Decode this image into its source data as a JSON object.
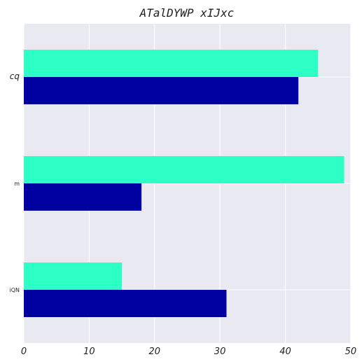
{
  "chart_data": {
    "type": "bar",
    "orientation": "horizontal",
    "title": "ATalDYWP xIJxc",
    "xlabel": "",
    "ylabel": "",
    "xlim": [
      0,
      50
    ],
    "xticks": [
      "0",
      "10",
      "20",
      "30",
      "40",
      "50"
    ],
    "categories": [
      "cq",
      "m",
      "iQN"
    ],
    "series": [
      {
        "color": "#2effc4",
        "values": [
          45,
          49,
          15
        ]
      },
      {
        "color": "#0000a0",
        "values": [
          42,
          18,
          31
        ]
      }
    ],
    "grid": true,
    "background": "#e9e9f2"
  }
}
